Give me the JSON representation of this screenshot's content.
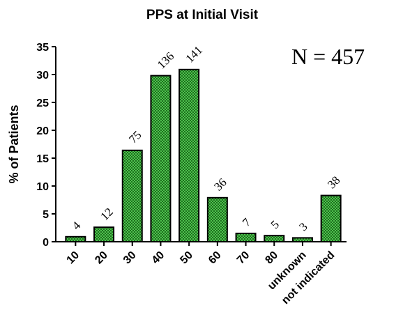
{
  "chart_data": {
    "type": "bar",
    "title": "PPS at Initial Visit",
    "ylabel": "% of Patients",
    "xlabel": "",
    "ylim": [
      0,
      35
    ],
    "yticks": [
      0,
      5,
      10,
      15,
      20,
      25,
      30,
      35
    ],
    "categories": [
      "10",
      "20",
      "30",
      "40",
      "50",
      "60",
      "70",
      "80",
      "unknown",
      "not indicated"
    ],
    "values": [
      0.9,
      2.6,
      16.4,
      29.8,
      30.9,
      7.9,
      1.5,
      1.1,
      0.7,
      8.3
    ],
    "data_labels": [
      "4",
      "12",
      "75",
      "136",
      "141",
      "36",
      "7",
      "5",
      "3",
      "38"
    ],
    "annotation": "N = 457",
    "bar_color": "#3aa33a",
    "grid": false
  }
}
